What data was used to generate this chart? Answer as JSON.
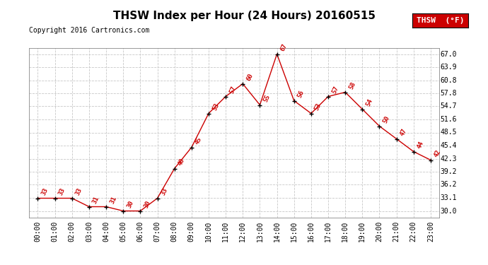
{
  "title": "THSW Index per Hour (24 Hours) 20160515",
  "copyright": "Copyright 2016 Cartronics.com",
  "legend_label": "THSW  (°F)",
  "hours": [
    0,
    1,
    2,
    3,
    4,
    5,
    6,
    7,
    8,
    9,
    10,
    11,
    12,
    13,
    14,
    15,
    16,
    17,
    18,
    19,
    20,
    21,
    22,
    23
  ],
  "values": [
    33,
    33,
    33,
    31,
    31,
    30,
    30,
    33,
    40,
    45,
    53,
    57,
    60,
    55,
    67,
    56,
    53,
    57,
    58,
    54,
    50,
    47,
    44,
    42
  ],
  "ylim": [
    28.5,
    68.5
  ],
  "yticks": [
    30.0,
    33.1,
    36.2,
    39.2,
    42.3,
    45.4,
    48.5,
    51.6,
    54.7,
    57.8,
    60.8,
    63.9,
    67.0
  ],
  "line_color": "#cc0000",
  "marker_color": "#000000",
  "grid_color": "#c8c8c8",
  "bg_color": "#ffffff",
  "title_fontsize": 11,
  "axis_fontsize": 7,
  "copyright_fontsize": 7,
  "legend_fontsize": 8
}
